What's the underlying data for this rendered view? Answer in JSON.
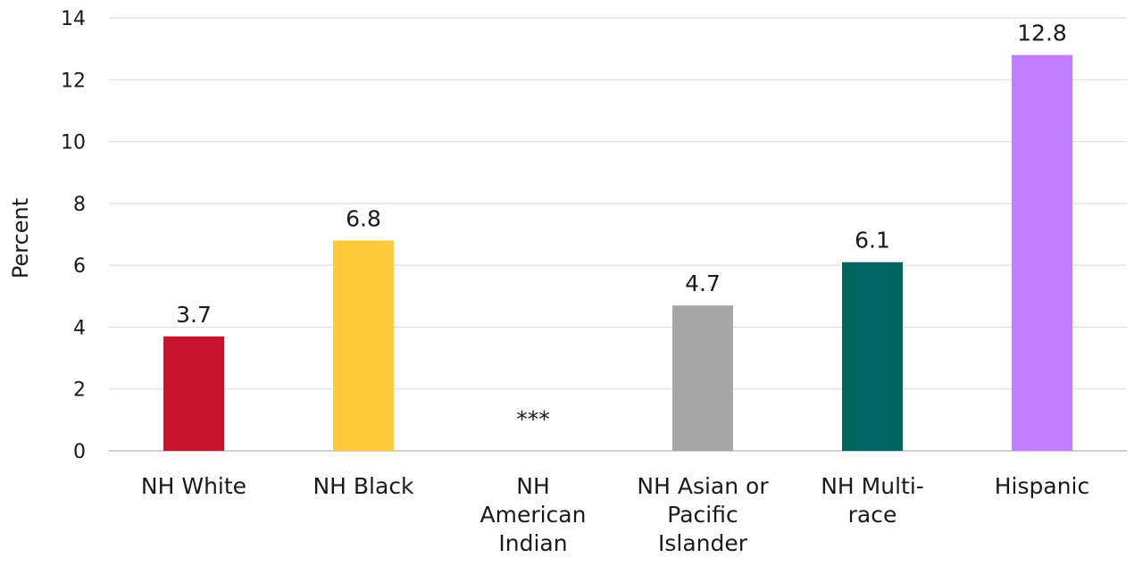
{
  "chart_data": {
    "type": "bar",
    "title": "",
    "xlabel": "",
    "ylabel": "Percent",
    "ylim": [
      0,
      14
    ],
    "yticks": [
      0,
      2,
      4,
      6,
      8,
      10,
      12,
      14
    ],
    "grid": true,
    "legend": "none",
    "categories": [
      [
        "NH White"
      ],
      [
        "NH Black"
      ],
      [
        "NH",
        "American",
        "Indian"
      ],
      [
        "NH Asian or",
        "Pacific",
        "Islander"
      ],
      [
        "NH Multi-",
        "race"
      ],
      [
        "Hispanic"
      ]
    ],
    "values": [
      3.7,
      6.8,
      null,
      4.7,
      6.1,
      12.8
    ],
    "data_labels": [
      "3.7",
      "6.8",
      "***",
      "4.7",
      "6.1",
      "12.8"
    ],
    "colors": [
      "#c8142c",
      "#fec93a",
      "#ffffff",
      "#a6a6a6",
      "#006460",
      "#c07fff"
    ]
  }
}
